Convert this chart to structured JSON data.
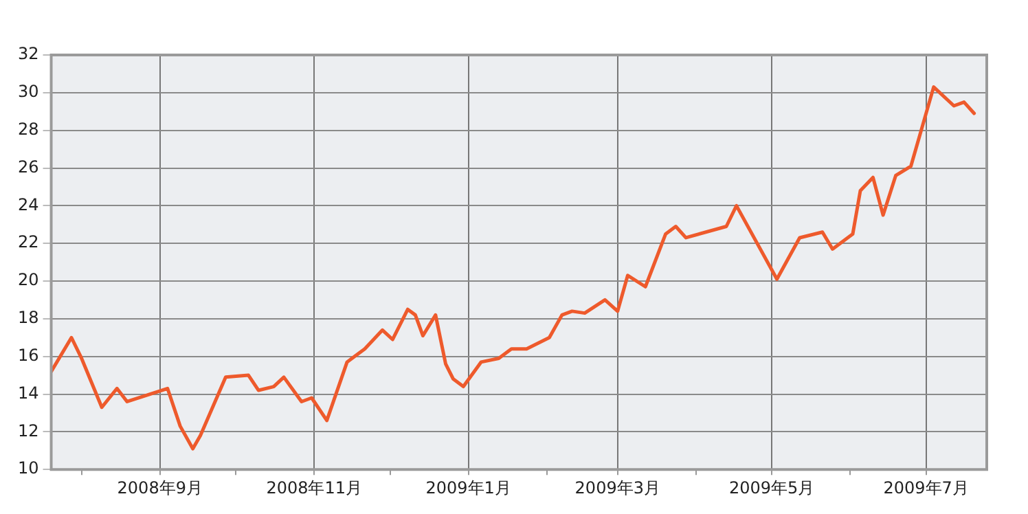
{
  "chart_data": {
    "type": "line",
    "color": "#ee5a2c",
    "marker": "none",
    "line_style": "solid",
    "grid": true,
    "legend": false,
    "x": [
      "2008-07-20",
      "2008-07-28",
      "2008-08-01",
      "2008-08-09",
      "2008-08-15",
      "2008-08-19",
      "2008-09-04",
      "2008-09-09",
      "2008-09-14",
      "2008-09-17",
      "2008-09-27",
      "2008-10-06",
      "2008-10-10",
      "2008-10-16",
      "2008-10-20",
      "2008-10-27",
      "2008-10-31",
      "2008-11-06",
      "2008-11-14",
      "2008-11-21",
      "2008-11-28",
      "2008-12-02",
      "2008-12-08",
      "2008-12-11",
      "2008-12-14",
      "2008-12-19",
      "2008-12-23",
      "2008-12-26",
      "2008-12-30",
      "2009-01-06",
      "2009-01-13",
      "2009-01-18",
      "2009-01-24",
      "2009-02-02",
      "2009-02-07",
      "2009-02-11",
      "2009-02-16",
      "2009-02-24",
      "2009-03-01",
      "2009-03-05",
      "2009-03-12",
      "2009-03-20",
      "2009-03-24",
      "2009-03-28",
      "2009-04-13",
      "2009-04-17",
      "2009-05-03",
      "2009-05-12",
      "2009-05-21",
      "2009-05-25",
      "2009-06-02",
      "2009-06-05",
      "2009-06-10",
      "2009-06-14",
      "2009-06-19",
      "2009-06-25",
      "2009-07-04",
      "2009-07-12",
      "2009-07-16",
      "2009-07-20"
    ],
    "values": [
      15.2,
      17.0,
      15.9,
      13.3,
      14.3,
      13.6,
      14.3,
      12.3,
      11.1,
      11.8,
      14.9,
      15.0,
      14.2,
      14.4,
      14.9,
      13.6,
      13.8,
      12.6,
      15.7,
      16.4,
      17.4,
      16.9,
      18.5,
      18.2,
      17.1,
      18.2,
      15.6,
      14.8,
      14.4,
      15.7,
      15.9,
      16.4,
      16.4,
      17.0,
      18.2,
      18.4,
      18.3,
      19.0,
      18.4,
      20.3,
      19.7,
      22.5,
      22.9,
      22.3,
      22.9,
      24.0,
      20.1,
      22.3,
      22.6,
      21.7,
      22.5,
      24.8,
      25.5,
      23.5,
      25.6,
      26.1,
      30.3,
      29.3,
      29.5,
      28.9
    ],
    "xlim": [
      "2008-07-20",
      "2009-07-25"
    ],
    "xticks": [
      {
        "value": "2008-08-01",
        "label": null
      },
      {
        "value": "2008-09-01",
        "label": "2008年9月"
      },
      {
        "value": "2008-10-01",
        "label": null
      },
      {
        "value": "2008-11-01",
        "label": "2008年11月"
      },
      {
        "value": "2008-12-01",
        "label": null
      },
      {
        "value": "2009-01-01",
        "label": "2009年1月"
      },
      {
        "value": "2009-02-01",
        "label": null
      },
      {
        "value": "2009-03-01",
        "label": "2009年3月"
      },
      {
        "value": "2009-04-01",
        "label": null
      },
      {
        "value": "2009-05-01",
        "label": "2009年5月"
      },
      {
        "value": "2009-06-01",
        "label": null
      },
      {
        "value": "2009-07-01",
        "label": "2009年7月"
      }
    ],
    "ylim": [
      10,
      32
    ],
    "yticks": [
      10,
      12,
      14,
      16,
      18,
      20,
      22,
      24,
      26,
      28,
      30,
      32
    ]
  }
}
